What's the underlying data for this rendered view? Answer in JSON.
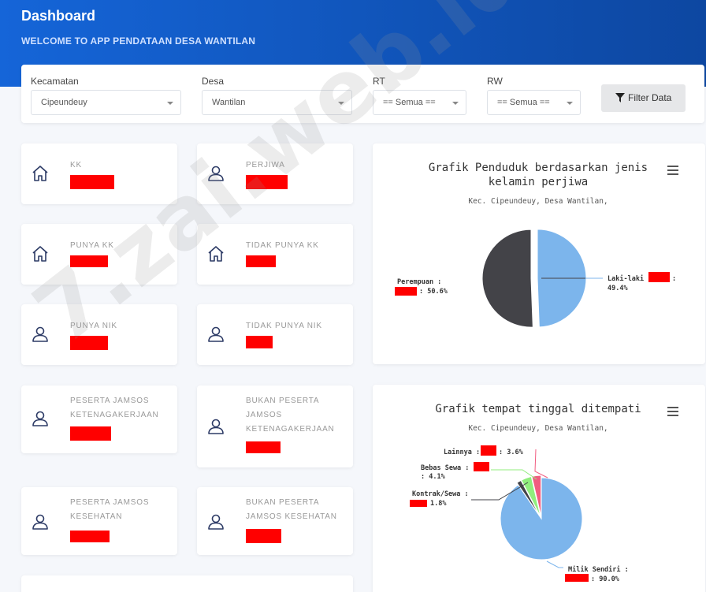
{
  "header": {
    "title": "Dashboard",
    "subtitle": "WELCOME TO APP PENDATAAN DESA WANTILAN"
  },
  "filters": {
    "kecamatan": {
      "label": "Kecamatan",
      "value": "Cipeundeuy"
    },
    "desa": {
      "label": "Desa",
      "value": "Wantilan"
    },
    "rt": {
      "label": "RT",
      "value": "== Semua =="
    },
    "rw": {
      "label": "RW",
      "value": "== Semua =="
    },
    "button_label": "Filter Data"
  },
  "stats": [
    {
      "label": "KK",
      "icon": "home-icon"
    },
    {
      "label": "PERJIWA",
      "icon": "user-icon"
    },
    {
      "label": "PUNYA KK",
      "icon": "home-icon"
    },
    {
      "label": "TIDAK PUNYA KK",
      "icon": "home-icon"
    },
    {
      "label": "PUNYA NIK",
      "icon": "user-icon"
    },
    {
      "label": "TIDAK PUNYA NIK",
      "icon": "user-icon"
    },
    {
      "label": "PESERTA JAMSOS KETENAGAKERJAAN",
      "icon": "user-icon"
    },
    {
      "label": "BUKAN PESERTA JAMSOS KETENAGAKERJAAN",
      "icon": "user-icon"
    },
    {
      "label": "PESERTA JAMSOS KESEHATAN",
      "icon": "user-icon"
    },
    {
      "label": "BUKAN PESERTA JAMSOS KESEHATAN",
      "icon": "user-icon"
    }
  ],
  "charts": {
    "gender": {
      "title_line1": "Grafik Penduduk berdasarkan jenis",
      "title_line2": "kelamin perjiwa",
      "subtitle": "Kec. Cipeundeuy, Desa Wantilan,",
      "label_male_a": "Laki-laki :",
      "label_male_b": ":",
      "label_male_pct": "49.4%",
      "label_female_a": "Perempuan :",
      "label_female_pct": ": 50.6%"
    },
    "residence": {
      "title": "Grafik tempat tinggal ditempati",
      "subtitle": "Kec. Cipeundeuy, Desa Wantilan,",
      "lainnya_a": "Lainnya :",
      "lainnya_pct": ": 3.6%",
      "bebas_a": "Bebas Sewa :",
      "bebas_pct": ": 4.1%",
      "kontrak_a": "Kontrak/Sewa :",
      "kontrak_pct": "1.8%",
      "milik_a": "Milik Sendiri :",
      "milik_pct": ": 90.0%"
    }
  },
  "chart_data": [
    {
      "type": "pie",
      "title": "Grafik Penduduk berdasarkan jenis kelamin perjiwa",
      "subtitle": "Kec. Cipeundeuy, Desa Wantilan,",
      "categories": [
        "Laki-laki",
        "Perempuan"
      ],
      "values": [
        49.4,
        50.6
      ],
      "colors": [
        "#7cb5ec",
        "#434348"
      ]
    },
    {
      "type": "pie",
      "title": "Grafik tempat tinggal ditempati",
      "subtitle": "Kec. Cipeundeuy, Desa Wantilan,",
      "categories": [
        "Milik Sendiri",
        "Kontrak/Sewa",
        "Bebas Sewa",
        "Lainnya"
      ],
      "values": [
        90.0,
        1.8,
        4.1,
        3.6
      ],
      "colors": [
        "#7cb5ec",
        "#434348",
        "#90ed7d",
        "#f15c80"
      ]
    }
  ],
  "watermark": "7.zai.web.id",
  "colors": {
    "accent": "#1565d8",
    "redacted": "#ff0000"
  }
}
